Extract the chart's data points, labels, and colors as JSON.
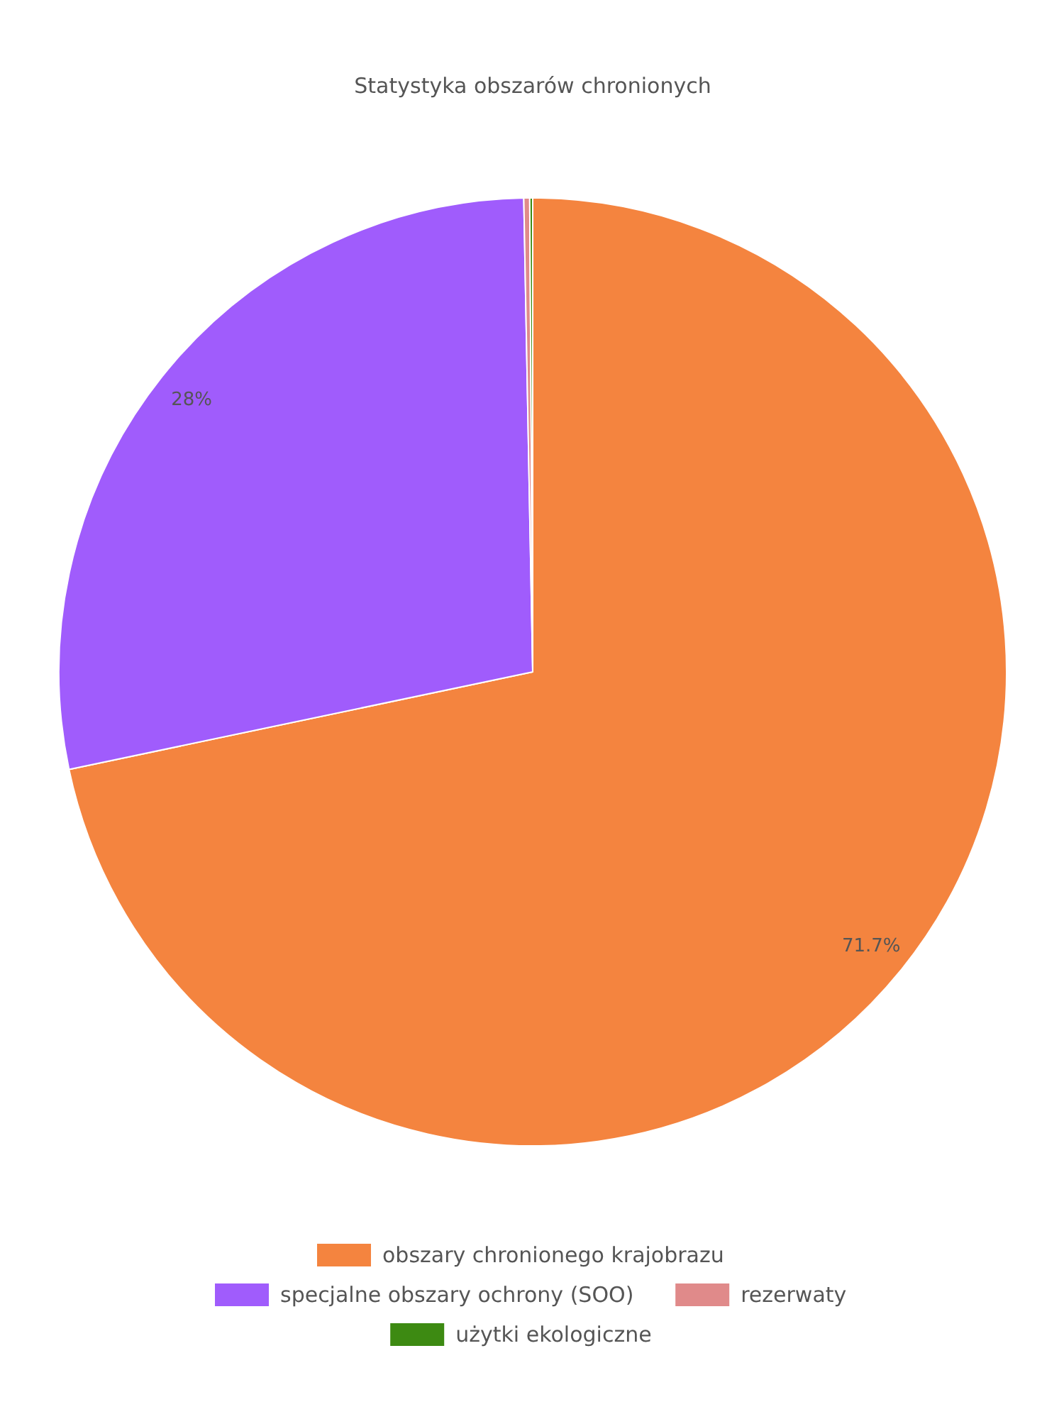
{
  "chart_data": {
    "type": "pie",
    "title": "Statystyka obszarów chronionych",
    "categories": [
      "obszary chronionego krajobrazu",
      "specjalne obszary ochrony (SOO)",
      "rezerwaty",
      "użytki ekologiczne"
    ],
    "values": [
      71.7,
      28,
      0.2,
      0.1
    ],
    "colors": [
      "#f4843f",
      "#a05cfc",
      "#e08a8a",
      "#3d8a12"
    ],
    "value_labels": [
      "71.7%",
      "28%",
      null,
      null
    ],
    "legend": "bottom"
  }
}
